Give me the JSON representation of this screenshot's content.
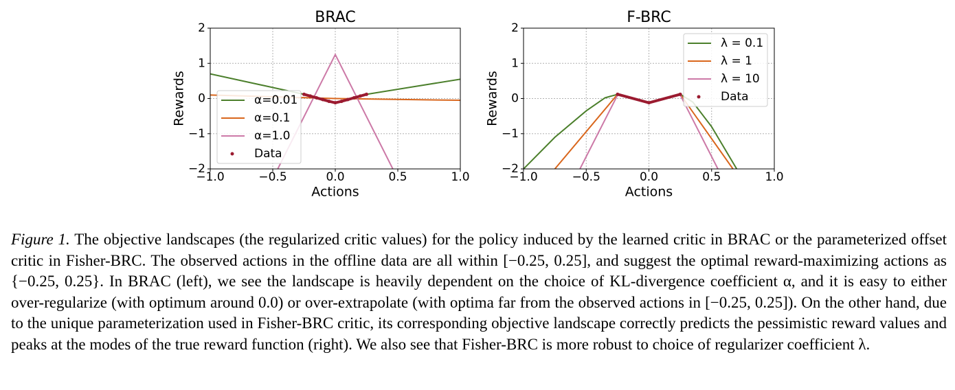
{
  "chart_data": [
    {
      "type": "line",
      "title": "BRAC",
      "xlabel": "Actions",
      "ylabel": "Rewards",
      "xlim": [
        -1,
        1
      ],
      "ylim": [
        -2,
        2
      ],
      "xticks": [
        {
          "value": -1,
          "label": "−1.0"
        },
        {
          "value": -0.5,
          "label": "−0.5"
        },
        {
          "value": 0,
          "label": "0.0"
        },
        {
          "value": 0.5,
          "label": "0.5"
        },
        {
          "value": 1,
          "label": "1.0"
        }
      ],
      "yticks": [
        {
          "value": -2,
          "label": "−2"
        },
        {
          "value": -1,
          "label": "−1"
        },
        0,
        1,
        2
      ],
      "grid": true,
      "legend": "lower left",
      "series": [
        {
          "name": "α=0.01",
          "color": "#4b7f2b",
          "x": [
            -1,
            -0.25,
            0,
            0.25,
            1
          ],
          "values": [
            0.7,
            0.12,
            -0.12,
            0.12,
            0.55
          ]
        },
        {
          "name": "α=0.1",
          "color": "#d9661c",
          "x": [
            -1,
            0,
            1
          ],
          "values": [
            0.1,
            0.0,
            -0.05
          ]
        },
        {
          "name": "α=1.0",
          "color": "#cc79a7",
          "x": [
            -0.46,
            0,
            0.46
          ],
          "values": [
            -2,
            1.25,
            -2
          ]
        },
        {
          "name": "Data",
          "color": "#9b1b30",
          "scatter": true,
          "x": [
            -0.25,
            -0.2,
            -0.15,
            -0.1,
            -0.05,
            0,
            0.05,
            0.1,
            0.15,
            0.2,
            0.25
          ],
          "values": [
            0.12,
            0.07,
            0.02,
            -0.03,
            -0.08,
            -0.12,
            -0.08,
            -0.03,
            0.02,
            0.07,
            0.12
          ]
        }
      ]
    },
    {
      "type": "line",
      "title": "F-BRC",
      "xlabel": "Actions",
      "ylabel": "Rewards",
      "xlim": [
        -1,
        1
      ],
      "ylim": [
        -2,
        2
      ],
      "xticks": [
        {
          "value": -1,
          "label": "−1.0"
        },
        {
          "value": -0.5,
          "label": "−0.5"
        },
        {
          "value": 0,
          "label": "0.0"
        },
        {
          "value": 0.5,
          "label": "0.5"
        },
        {
          "value": 1,
          "label": "1.0"
        }
      ],
      "yticks": [
        {
          "value": -2,
          "label": "−2"
        },
        {
          "value": -1,
          "label": "−1"
        },
        0,
        1,
        2
      ],
      "grid": true,
      "legend": "upper right",
      "series": [
        {
          "name": "λ = 0.1",
          "color": "#4b7f2b",
          "x": [
            -1,
            -0.75,
            -0.5,
            -0.35,
            -0.25,
            0,
            0.25,
            0.35,
            0.5,
            0.7
          ],
          "values": [
            -2,
            -1.1,
            -0.35,
            0.02,
            0.12,
            -0.12,
            0.12,
            -0.1,
            -0.8,
            -2
          ]
        },
        {
          "name": "λ = 1",
          "color": "#d9661c",
          "x": [
            -0.75,
            -0.25,
            0,
            0.25,
            0.67
          ],
          "values": [
            -2,
            0.12,
            -0.12,
            0.12,
            -2
          ]
        },
        {
          "name": "λ = 10",
          "color": "#cc79a7",
          "x": [
            -0.55,
            -0.25,
            0,
            0.25,
            0.55
          ],
          "values": [
            -2,
            0.1,
            -0.12,
            0.1,
            -2
          ]
        },
        {
          "name": "Data",
          "color": "#9b1b30",
          "scatter": true,
          "x": [
            -0.25,
            0,
            0.25
          ],
          "values": [
            0.12,
            -0.12,
            0.12
          ]
        }
      ]
    }
  ],
  "caption": {
    "label": "Figure 1.",
    "text": "The objective landscapes (the regularized critic values) for the policy induced by the learned critic in BRAC or the parameterized offset critic in Fisher-BRC. The observed actions in the offline data are all within [−0.25, 0.25], and suggest the optimal reward-maximizing actions as {−0.25, 0.25}. In BRAC (left), we see the landscape is heavily dependent on the choice of KL-divergence coefficient α, and it is easy to either over-regularize (with optimum around 0.0) or over-extrapolate (with optima far from the observed actions in [−0.25, 0.25]). On the other hand, due to the unique parameterization used in Fisher-BRC critic, its corresponding objective landscape correctly predicts the pessimistic reward values and peaks at the modes of the true reward function (right). We also see that Fisher-BRC is more robust to choice of regularizer coefficient λ."
  }
}
